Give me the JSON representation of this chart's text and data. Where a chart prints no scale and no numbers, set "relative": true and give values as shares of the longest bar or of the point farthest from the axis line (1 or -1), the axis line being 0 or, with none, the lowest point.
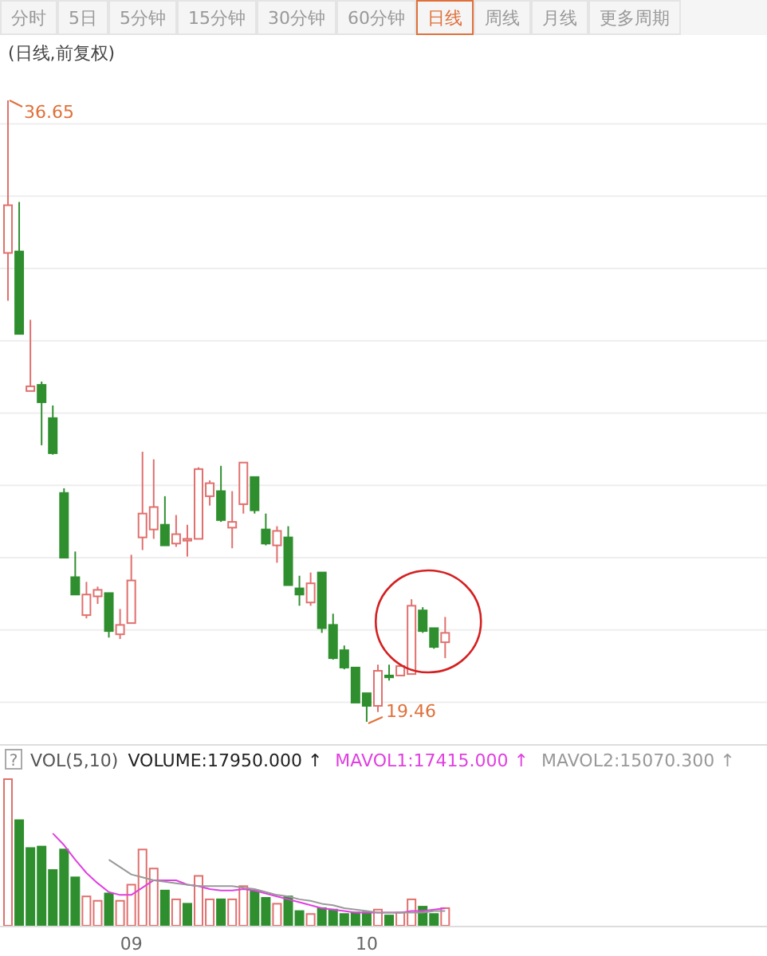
{
  "chart_data": [
    {
      "type": "candlestick",
      "title": "(日线,前复权)",
      "annotations": [
        "分时",
        "5日",
        "5分钟",
        "15分钟",
        "30分钟",
        "60分钟",
        "日线",
        "周线",
        "月线",
        "更多周期",
        "36.65",
        "19.46"
      ],
      "categories": [
        null,
        null,
        null,
        null,
        null,
        null,
        null,
        null,
        null,
        null,
        null,
        null,
        null,
        null,
        null,
        null,
        null,
        null,
        null,
        null,
        null,
        null,
        null,
        null,
        null,
        null,
        null,
        null,
        null,
        null,
        null,
        null,
        null,
        null,
        null,
        null,
        null,
        null,
        null,
        null
      ],
      "ohlc": [
        [
          32.43,
          36.65,
          31.11,
          33.75
        ],
        [
          32.47,
          33.84,
          30.19,
          30.19
        ],
        [
          28.61,
          30.58,
          28.61,
          28.74
        ],
        [
          28.78,
          28.87,
          27.11,
          28.3
        ],
        [
          27.86,
          28.21,
          26.85,
          26.89
        ],
        [
          25.79,
          25.92,
          24.0,
          24.0
        ],
        [
          23.46,
          24.17,
          22.98,
          22.98
        ],
        [
          22.41,
          23.33,
          22.32,
          22.98
        ],
        [
          22.93,
          23.2,
          22.72,
          23.11
        ],
        [
          23.02,
          23.02,
          21.79,
          21.97
        ],
        [
          21.88,
          22.58,
          21.75,
          22.14
        ],
        [
          22.19,
          24.08,
          22.19,
          23.37
        ],
        [
          24.56,
          26.93,
          24.21,
          25.22
        ],
        [
          24.78,
          26.72,
          24.52,
          25.4
        ],
        [
          24.91,
          25.7,
          24.34,
          24.34
        ],
        [
          24.39,
          25.18,
          24.3,
          24.65
        ],
        [
          24.47,
          24.91,
          24.03,
          24.52
        ],
        [
          24.52,
          26.5,
          24.52,
          26.45
        ],
        [
          25.7,
          26.14,
          25.44,
          26.06
        ],
        [
          25.84,
          26.54,
          24.99,
          25.04
        ],
        [
          24.83,
          25.84,
          24.26,
          24.99
        ],
        [
          25.48,
          26.63,
          25.22,
          26.63
        ],
        [
          26.23,
          26.23,
          25.22,
          25.31
        ],
        [
          24.78,
          25.22,
          24.34,
          24.39
        ],
        [
          24.34,
          24.87,
          23.86,
          24.74
        ],
        [
          24.56,
          24.87,
          23.24,
          23.24
        ],
        [
          23.15,
          23.5,
          22.67,
          22.98
        ],
        [
          22.76,
          23.59,
          22.67,
          23.29
        ],
        [
          23.59,
          23.59,
          21.92,
          22.05
        ],
        [
          22.14,
          22.45,
          21.18,
          21.22
        ],
        [
          21.44,
          21.57,
          20.91,
          20.96
        ],
        [
          20.96,
          20.96,
          19.99,
          19.99
        ],
        [
          20.25,
          20.25,
          19.46,
          19.9
        ],
        [
          19.9,
          21.04,
          19.73,
          20.87
        ],
        [
          20.74,
          21.04,
          20.6,
          20.69
        ],
        [
          20.74,
          21.04,
          20.74,
          21.0
        ],
        [
          20.78,
          22.85,
          20.78,
          22.67
        ],
        [
          22.54,
          22.63,
          21.92,
          21.97
        ],
        [
          22.05,
          22.05,
          21.48,
          21.53
        ],
        [
          21.66,
          22.36,
          21.22,
          21.92
        ]
      ],
      "yticks": [
        {
          "value": 20,
          "label": null
        },
        {
          "value": 22,
          "label": null
        },
        {
          "value": 24,
          "label": null
        },
        {
          "value": 26,
          "label": null
        },
        {
          "value": 28,
          "label": null
        },
        {
          "value": 30,
          "label": null
        },
        {
          "value": 32,
          "label": null
        },
        {
          "value": 34,
          "label": null
        },
        {
          "value": 36,
          "label": null
        }
      ],
      "grid": "y"
    },
    {
      "type": "bar",
      "title": "VOL(5,10)",
      "relative": true,
      "legend": "top",
      "annotations": [
        "?",
        "VOLUME:17950.000 ↑"
      ],
      "categories": [
        null,
        null,
        null,
        null,
        null,
        null,
        null,
        null,
        null,
        null,
        null,
        "09",
        null,
        null,
        null,
        null,
        null,
        null,
        null,
        null,
        null,
        null,
        null,
        null,
        null,
        null,
        null,
        null,
        null,
        null,
        null,
        null,
        "10",
        null,
        null,
        null,
        null,
        null,
        null,
        null
      ],
      "series": [
        {
          "colors": [
            "#e0706e",
            "#2f8f2f",
            "#2f8f2f",
            "#2f8f2f",
            "#2f8f2f",
            "#2f8f2f",
            "#2f8f2f",
            "#e0706e",
            "#e0706e",
            "#2f8f2f",
            "#e0706e",
            "#e0706e",
            "#e0706e",
            "#e0706e",
            "#2f8f2f",
            "#e0706e",
            "#2f8f2f",
            "#e0706e",
            "#e0706e",
            "#2f8f2f",
            "#e0706e",
            "#e0706e",
            "#2f8f2f",
            "#2f8f2f",
            "#e0706e",
            "#2f8f2f",
            "#2f8f2f",
            "#e0706e",
            "#2f8f2f",
            "#2f8f2f",
            "#2f8f2f",
            "#2f8f2f",
            "#2f8f2f",
            "#e0706e",
            "#2f8f2f",
            "#e0706e",
            "#e0706e",
            "#2f8f2f",
            "#2f8f2f",
            "#e0706e"
          ],
          "values": [
            1,
            0.72,
            0.53,
            0.54,
            0.38,
            0.52,
            0.33,
            0.2,
            0.17,
            0.22,
            0.17,
            0.28,
            0.52,
            0.39,
            0.24,
            0.18,
            0.15,
            0.34,
            0.18,
            0.18,
            0.18,
            0.27,
            0.24,
            0.19,
            0.15,
            0.2,
            0.1,
            0.08,
            0.12,
            0.11,
            0.08,
            0.09,
            0.09,
            0.11,
            0.07,
            0.09,
            0.18,
            0.13,
            0.08,
            0.12
          ]
        },
        {
          "type": "line",
          "name": "MAVOL1:17415.000 ↑",
          "color": "#e040e0",
          "values": [
            null,
            null,
            null,
            null,
            0.63,
            0.55,
            0.45,
            0.36,
            0.29,
            0.23,
            0.21,
            0.21,
            0.26,
            0.31,
            0.31,
            0.31,
            0.28,
            0.27,
            0.25,
            0.24,
            0.24,
            0.25,
            0.24,
            0.22,
            0.2,
            0.18,
            0.16,
            0.14,
            0.12,
            0.11,
            0.1,
            0.09,
            0.09,
            0.09,
            0.09,
            0.09,
            0.1,
            0.1,
            0.11,
            0.12
          ]
        },
        {
          "type": "line",
          "name": "MAVOL2:15070.300 ↑",
          "color": "#999999",
          "values": [
            null,
            null,
            null,
            null,
            null,
            null,
            null,
            null,
            null,
            0.45,
            0.4,
            0.35,
            0.33,
            0.31,
            0.3,
            0.29,
            0.28,
            0.27,
            0.27,
            0.27,
            0.27,
            0.26,
            0.25,
            0.23,
            0.21,
            0.2,
            0.18,
            0.17,
            0.15,
            0.14,
            0.12,
            0.11,
            0.1,
            0.09,
            0.09,
            0.09,
            0.09,
            0.09,
            0.1,
            0.1
          ]
        }
      ]
    }
  ]
}
